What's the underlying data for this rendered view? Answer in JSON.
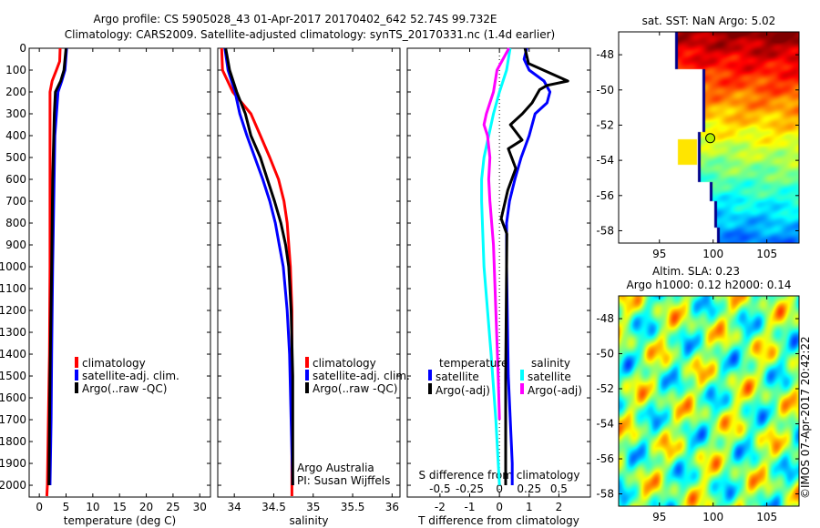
{
  "title_line1": "Argo profile: CS 5905028_43 01-Apr-2017 20170402_642 52.74S 99.732E",
  "title_line2": "Climatology: CARS2009. Satellite-adjusted climatology: synTS_20170331.nc (1.4d earlier)",
  "credit_line1": "Argo Australia",
  "credit_line2": "PI: Susan Wijffels",
  "copyright": "©IMOS 07-Apr-2017 20:42:22",
  "colors": {
    "red": "#ff0000",
    "blue": "#0000ff",
    "black": "#000000",
    "cyan": "#00ffff",
    "magenta": "#ff00ff"
  },
  "chart_data": [
    {
      "type": "line",
      "id": "temperature",
      "xlabel": "temperature (deg C)",
      "ylabel": "",
      "xlim": [
        -1.9,
        32
      ],
      "ylim": [
        2054,
        0
      ],
      "xticks": [
        0,
        5,
        10,
        15,
        20,
        25,
        30
      ],
      "yticks": [
        0,
        100,
        200,
        300,
        400,
        500,
        600,
        700,
        800,
        900,
        1000,
        1100,
        1200,
        1300,
        1400,
        1500,
        1600,
        1700,
        1800,
        1900,
        2000
      ],
      "legend": [
        "climatology",
        "satellite-adj. clim.",
        "Argo(..raw -QC)"
      ],
      "series": [
        {
          "name": "climatology",
          "color": "red",
          "depth": [
            0,
            60,
            100,
            150,
            200,
            300,
            600,
            1000,
            1400,
            1700,
            2000,
            2050
          ],
          "values": [
            3.9,
            3.8,
            3.2,
            2.4,
            2.0,
            2.0,
            2.0,
            2.0,
            1.9,
            1.7,
            1.5,
            1.4
          ]
        },
        {
          "name": "satellite-adj. clim.",
          "color": "blue",
          "depth": [
            0,
            100,
            150,
            200,
            400,
            1000,
            1400,
            1700,
            2000
          ],
          "values": [
            5.1,
            4.8,
            4.2,
            3.5,
            2.9,
            2.5,
            2.3,
            2.2,
            2.0
          ]
        },
        {
          "name": "Argo(..raw -QC)",
          "color": "black",
          "depth": [
            0,
            100,
            150,
            200,
            300,
            600,
            1000,
            1500,
            2000
          ],
          "values": [
            5.0,
            4.6,
            4.0,
            3.0,
            2.8,
            2.5,
            2.3,
            2.0,
            1.8
          ]
        }
      ]
    },
    {
      "type": "line",
      "id": "salinity",
      "xlabel": "salinity",
      "xlim": [
        33.79,
        36.1
      ],
      "ylim": [
        2054,
        0
      ],
      "xticks": [
        34,
        34.5,
        35,
        35.5,
        36
      ],
      "legend": [
        "climatology",
        "satellite-adj. clim.",
        "Argo(..raw -QC)"
      ],
      "series": [
        {
          "name": "climatology",
          "color": "red",
          "depth": [
            0,
            100,
            200,
            300,
            400,
            500,
            600,
            700,
            800,
            1000,
            1200,
            2050
          ],
          "values": [
            33.84,
            33.85,
            33.98,
            34.21,
            34.33,
            34.45,
            34.56,
            34.63,
            34.67,
            34.71,
            34.73,
            34.73
          ]
        },
        {
          "name": "satellite-adj. clim.",
          "color": "blue",
          "depth": [
            0,
            100,
            200,
            300,
            400,
            500,
            600,
            700,
            800,
            900,
            1000,
            1200,
            1400,
            1700,
            2000
          ],
          "values": [
            33.88,
            33.92,
            34.01,
            34.07,
            34.16,
            34.26,
            34.36,
            34.45,
            34.52,
            34.57,
            34.62,
            34.67,
            34.7,
            34.72,
            34.74
          ]
        },
        {
          "name": "Argo(..raw -QC)",
          "color": "black",
          "depth": [
            0,
            100,
            200,
            300,
            400,
            500,
            600,
            700,
            800,
            900,
            1000,
            1200,
            1500,
            2000
          ],
          "values": [
            33.89,
            33.94,
            34.03,
            34.14,
            34.21,
            34.33,
            34.42,
            34.51,
            34.59,
            34.65,
            34.69,
            34.72,
            34.74,
            34.74
          ]
        }
      ]
    },
    {
      "type": "line",
      "id": "difference",
      "xlabel": "T difference from climatology",
      "xlabel_top": "S difference from climatology",
      "xlim": [
        -3.1,
        3.06
      ],
      "xlim_s": [
        -0.775,
        0.765
      ],
      "ylim": [
        2054,
        0
      ],
      "xticks": [
        -2,
        -1,
        0,
        1,
        2
      ],
      "xticks_s": [
        -0.5,
        -0.25,
        0,
        0.25,
        0.5
      ],
      "xtick_labels_s": [
        "-0.5",
        "-0.25",
        "0",
        "0.25",
        "0.5"
      ],
      "legend_temperature": {
        "title": "temperature",
        "items": [
          "satellite",
          "Argo(-adj)"
        ]
      },
      "legend_salinity": {
        "title": "salinity",
        "items": [
          "satellite",
          "Argo(-adj)"
        ]
      },
      "series": [
        {
          "name": "temperature satellite",
          "axis": "T",
          "color": "blue",
          "depth": [
            0,
            50,
            100,
            150,
            200,
            250,
            300,
            400,
            500,
            600,
            700,
            800,
            1000,
            1500,
            1900,
            2000
          ],
          "values": [
            0.92,
            0.83,
            1.0,
            1.5,
            1.7,
            1.6,
            1.2,
            1.0,
            0.73,
            0.52,
            0.34,
            0.24,
            0.24,
            0.3,
            0.43,
            0.43
          ]
        },
        {
          "name": "temperature Argo(-adj)",
          "axis": "T",
          "color": "black",
          "depth": [
            0,
            70,
            150,
            170,
            190,
            250,
            300,
            350,
            420,
            460,
            550,
            650,
            780,
            850,
            1000,
            1500,
            2000
          ],
          "values": [
            0.86,
            0.98,
            2.3,
            1.6,
            1.35,
            1.1,
            0.77,
            0.37,
            0.76,
            0.3,
            0.55,
            0.28,
            0.06,
            0.25,
            0.24,
            0.21,
            0.21
          ]
        },
        {
          "name": "salinity satellite",
          "axis": "S",
          "color": "cyan",
          "depth": [
            0,
            100,
            200,
            300,
            400,
            500,
            600,
            700,
            1000,
            1400,
            1700,
            2000
          ],
          "values": [
            0.09,
            0.06,
            0.0,
            -0.05,
            -0.09,
            -0.13,
            -0.15,
            -0.15,
            -0.13,
            -0.07,
            -0.03,
            0.0
          ]
        },
        {
          "name": "salinity Argo(-adj)",
          "axis": "S",
          "color": "magenta",
          "depth": [
            0,
            100,
            200,
            300,
            350,
            400,
            500,
            600,
            700,
            900,
            1200,
            1500,
            1700
          ],
          "values": [
            0.08,
            -0.02,
            -0.05,
            -0.11,
            -0.13,
            -0.1,
            -0.08,
            -0.09,
            -0.08,
            -0.05,
            -0.03,
            -0.01,
            0.0
          ]
        }
      ]
    },
    {
      "type": "heatmap",
      "id": "sst-map",
      "title": "sat. SST: NaN Argo: 5.02",
      "xlim": [
        91.2,
        108
      ],
      "ylim": [
        -58.7,
        -46.7
      ],
      "xticks": [
        95,
        100,
        105
      ],
      "yticks": [
        -48,
        -50,
        -52,
        -54,
        -56,
        -58
      ],
      "argo_position": {
        "lon": 99.732,
        "lat": -52.74
      }
    },
    {
      "type": "heatmap",
      "id": "sla-map",
      "title": "Altim. SLA: 0.23",
      "subtitle": "Argo h1000: 0.12 h2000: 0.14",
      "xlim": [
        91.2,
        108
      ],
      "ylim": [
        -58.7,
        -46.7
      ],
      "xticks": [
        95,
        100,
        105
      ],
      "yticks": [
        -48,
        -50,
        -52,
        -54,
        -56,
        -58
      ]
    }
  ]
}
